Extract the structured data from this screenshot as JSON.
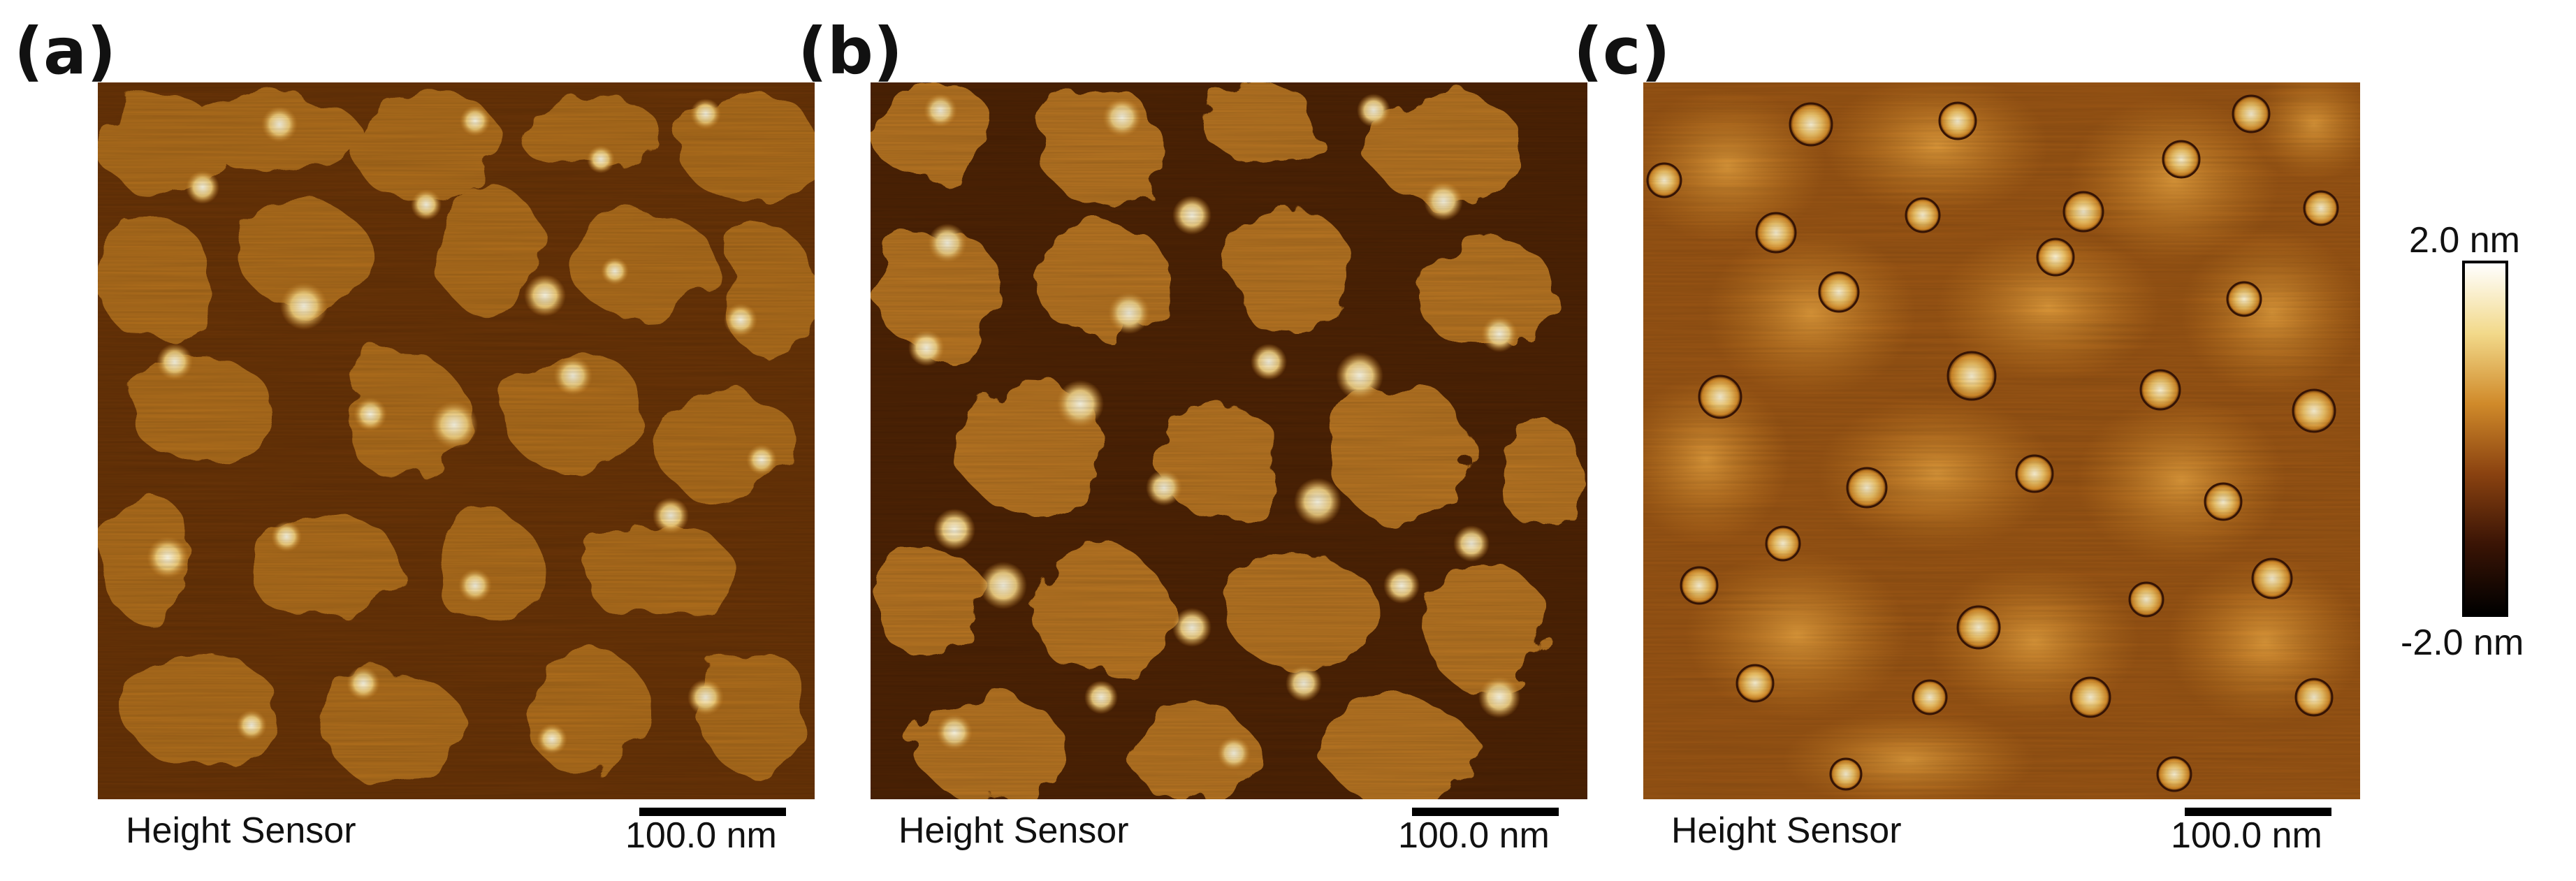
{
  "panels": [
    {
      "letter": "(a)",
      "caption": "Height Sensor",
      "scale_label": "100.0 nm"
    },
    {
      "letter": "(b)",
      "caption": "Height Sensor",
      "scale_label": "100.0 nm"
    },
    {
      "letter": "(c)",
      "caption": "Height Sensor",
      "scale_label": "100.0 nm"
    }
  ],
  "colorbar": {
    "max_label": "2.0 nm",
    "min_label": "-2.0 nm",
    "colors": [
      "#ffffff",
      "#f2d98a",
      "#d08a2a",
      "#8a4210",
      "#3a1405",
      "#000000"
    ]
  }
}
